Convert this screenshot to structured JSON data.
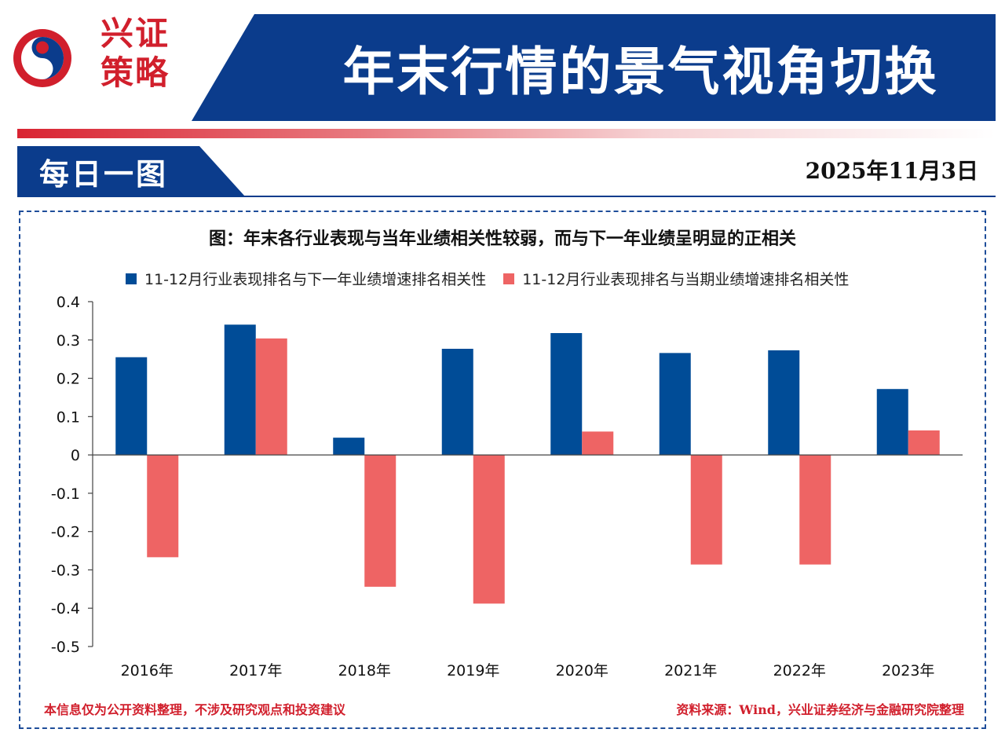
{
  "brand": {
    "logo_line1": "兴证",
    "logo_line2": "策略",
    "colors": {
      "navy": "#0b3c8c",
      "red": "#d11f2c",
      "bar_blue": "#004c97",
      "bar_red": "#ee6464"
    }
  },
  "header": {
    "title": "年末行情的景气视角切换"
  },
  "section": {
    "label": "每日一图",
    "date": "2025年11月3日"
  },
  "chart_data": {
    "type": "bar",
    "title": "图：年末各行业表现与当年业绩相关性较弱，而与下一年业绩呈明显的正相关",
    "categories": [
      "2016年",
      "2017年",
      "2018年",
      "2019年",
      "2020年",
      "2021年",
      "2022年",
      "2023年"
    ],
    "series": [
      {
        "name": "11-12月行业表现排名与下一年业绩增速排名相关性",
        "color": "#004c97",
        "values": [
          0.255,
          0.34,
          0.045,
          0.277,
          0.318,
          0.266,
          0.273,
          0.172
        ]
      },
      {
        "name": "11-12月行业表现排名与当期业绩增速排名相关性",
        "color": "#ee6464",
        "values": [
          -0.267,
          0.304,
          -0.344,
          -0.388,
          0.061,
          -0.286,
          -0.286,
          0.064
        ]
      }
    ],
    "ylim": [
      -0.5,
      0.4
    ],
    "yticks": [
      0.4,
      0.3,
      0.2,
      0.1,
      0,
      -0.1,
      -0.2,
      -0.3,
      -0.4,
      -0.5
    ],
    "ytick_labels": [
      "0.4",
      "0.3",
      "0.2",
      "0.1",
      "0",
      "-0.1",
      "-0.2",
      "-0.3",
      "-0.4",
      "-0.5"
    ],
    "legend_position": "top"
  },
  "footer": {
    "disclaimer": "本信息仅为公开资料整理，不涉及研究观点和投资建议",
    "source": "资料来源：Wind，兴业证券经济与金融研究院整理"
  }
}
